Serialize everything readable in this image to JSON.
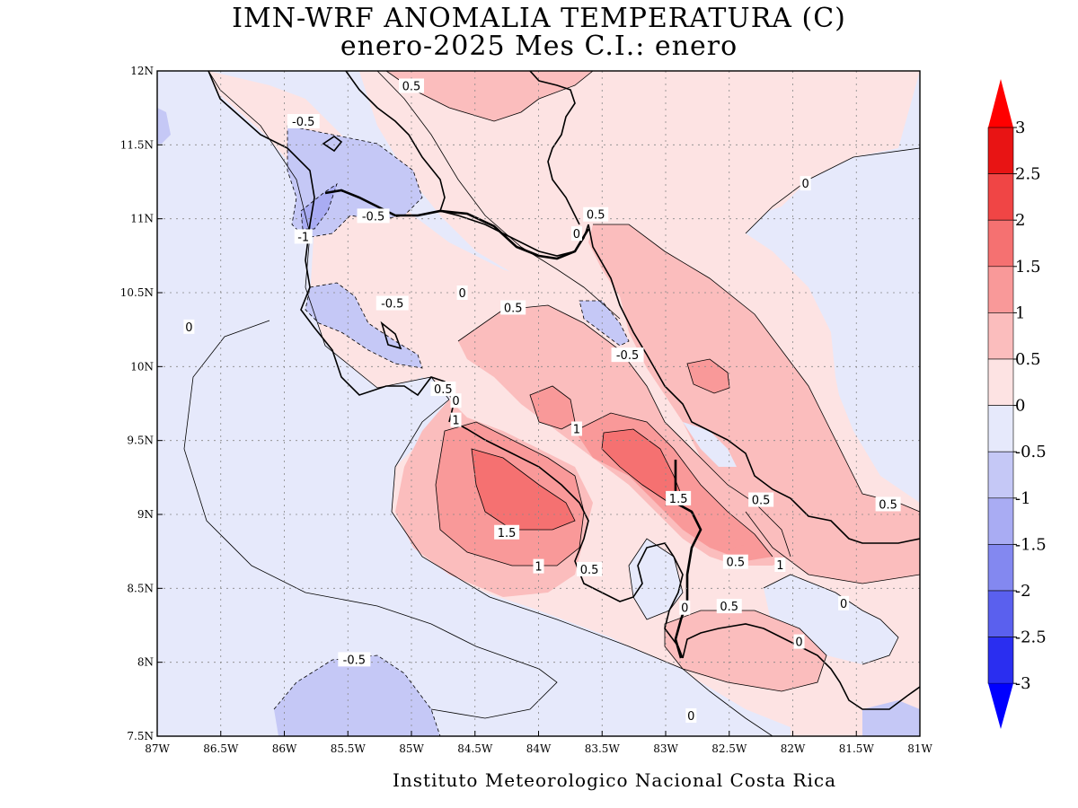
{
  "title": {
    "line1": "IMN-WRF  ANOMALIA TEMPERATURA (C)",
    "line2": "enero-2025 Mes C.I.: enero"
  },
  "credit": "Instituto Meteorologico Nacional Costa Rica",
  "map": {
    "lon_range": [
      -87,
      -81
    ],
    "lat_range": [
      7.5,
      12
    ],
    "lon_ticks": [
      {
        "v": -87,
        "label": "87W"
      },
      {
        "v": -86.5,
        "label": "86.5W"
      },
      {
        "v": -86,
        "label": "86W"
      },
      {
        "v": -85.5,
        "label": "85.5W"
      },
      {
        "v": -85,
        "label": "85W"
      },
      {
        "v": -84.5,
        "label": "84.5W"
      },
      {
        "v": -84,
        "label": "84W"
      },
      {
        "v": -83.5,
        "label": "83.5W"
      },
      {
        "v": -83,
        "label": "83W"
      },
      {
        "v": -82.5,
        "label": "82.5W"
      },
      {
        "v": -82,
        "label": "82W"
      },
      {
        "v": -81.5,
        "label": "81.5W"
      },
      {
        "v": -81,
        "label": "81W"
      }
    ],
    "lat_ticks": [
      {
        "v": 12,
        "label": "12N"
      },
      {
        "v": 11.5,
        "label": "11.5N"
      },
      {
        "v": 11,
        "label": "11N"
      },
      {
        "v": 10.5,
        "label": "10.5N"
      },
      {
        "v": 10,
        "label": "10N"
      },
      {
        "v": 9.5,
        "label": "9.5N"
      },
      {
        "v": 9,
        "label": "9N"
      },
      {
        "v": 8.5,
        "label": "8.5N"
      },
      {
        "v": 8,
        "label": "8N"
      },
      {
        "v": 7.5,
        "label": "7.5N"
      }
    ],
    "grid": true,
    "contour_labels": [
      {
        "lon": -85.0,
        "lat": 11.9,
        "text": "0.5"
      },
      {
        "lon": -85.85,
        "lat": 11.66,
        "text": "-0.5"
      },
      {
        "lon": -85.3,
        "lat": 11.02,
        "text": "-0.5"
      },
      {
        "lon": -85.85,
        "lat": 10.88,
        "text": "-1"
      },
      {
        "lon": -83.55,
        "lat": 11.03,
        "text": "0.5"
      },
      {
        "lon": -83.7,
        "lat": 10.9,
        "text": "0"
      },
      {
        "lon": -81.9,
        "lat": 11.24,
        "text": "0"
      },
      {
        "lon": -84.6,
        "lat": 10.5,
        "text": "0"
      },
      {
        "lon": -84.2,
        "lat": 10.4,
        "text": "0.5"
      },
      {
        "lon": -85.15,
        "lat": 10.43,
        "text": "-0.5"
      },
      {
        "lon": -86.75,
        "lat": 10.27,
        "text": "0"
      },
      {
        "lon": -83.3,
        "lat": 10.08,
        "text": "-0.5"
      },
      {
        "lon": -84.75,
        "lat": 9.85,
        "text": "0.5"
      },
      {
        "lon": -84.65,
        "lat": 9.77,
        "text": "0"
      },
      {
        "lon": -84.65,
        "lat": 9.64,
        "text": "1"
      },
      {
        "lon": -83.7,
        "lat": 9.58,
        "text": "1"
      },
      {
        "lon": -82.9,
        "lat": 9.11,
        "text": "1.5"
      },
      {
        "lon": -82.25,
        "lat": 9.1,
        "text": "0.5"
      },
      {
        "lon": -81.25,
        "lat": 9.07,
        "text": "0.5"
      },
      {
        "lon": -84.25,
        "lat": 8.88,
        "text": "1.5"
      },
      {
        "lon": -84.0,
        "lat": 8.65,
        "text": "1"
      },
      {
        "lon": -83.6,
        "lat": 8.63,
        "text": "0.5"
      },
      {
        "lon": -82.45,
        "lat": 8.68,
        "text": "0.5"
      },
      {
        "lon": -82.1,
        "lat": 8.66,
        "text": "1"
      },
      {
        "lon": -82.85,
        "lat": 8.37,
        "text": "0"
      },
      {
        "lon": -82.5,
        "lat": 8.38,
        "text": "0.5"
      },
      {
        "lon": -81.6,
        "lat": 8.4,
        "text": "0"
      },
      {
        "lon": -81.95,
        "lat": 8.14,
        "text": "0"
      },
      {
        "lon": -85.45,
        "lat": 8.02,
        "text": "-0.5"
      },
      {
        "lon": -82.8,
        "lat": 7.64,
        "text": "0"
      }
    ]
  },
  "colorbar": {
    "labels": [
      "3",
      "2.5",
      "2",
      "1.5",
      "1",
      "0.5",
      "0",
      "-0.5",
      "-1",
      "-1.5",
      "-2",
      "-2.5",
      "-3"
    ],
    "colors": [
      "#e81414",
      "#f04545",
      "#f57171",
      "#f99999",
      "#fbbdbd",
      "#fde3e3",
      "#e6e9fb",
      "#c5c8f6",
      "#a9acf3",
      "#8388f0",
      "#5a60ee",
      "#2a2ef0"
    ],
    "over_color": "#ff0000",
    "under_color": "#0000ff",
    "fill_colors": {
      "n1": "#a9acf3",
      "n05": "#c5c8f6",
      "n0": "#e6e9fb",
      "p0": "#fde3e3",
      "p05": "#fbbdbd",
      "p1": "#f99999",
      "p15": "#f57171",
      "land_line": "#000000"
    }
  }
}
